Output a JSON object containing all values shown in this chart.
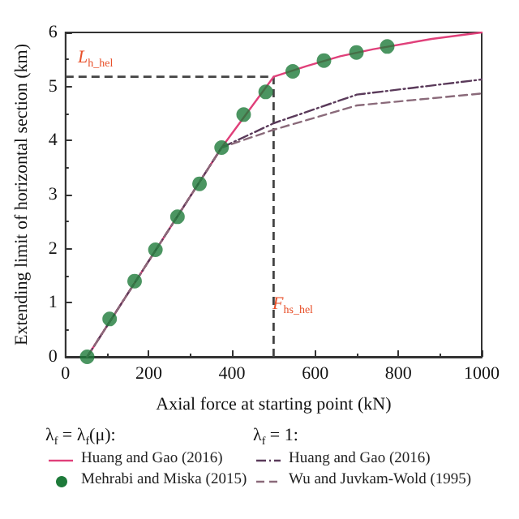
{
  "chart_data": {
    "type": "line",
    "xlabel": "Axial force at starting point (kN)",
    "ylabel": "Extending limit of horizontal section (km)",
    "xlim": [
      0,
      1000
    ],
    "xticks": [
      0,
      200,
      400,
      600,
      800,
      1000
    ],
    "ylim": [
      0,
      6
    ],
    "yticks": [
      0,
      1,
      2,
      3,
      4,
      5,
      6
    ],
    "grid": false,
    "legend": "bottom",
    "annotations": [
      "λ$_{f}$ = λ$_{f}$(μ):",
      "λ$_{f}$ = 1:"
    ],
    "ref_lines": [
      {
        "axis": "y",
        "value": 5.18,
        "label": "L$_{h_hel}$",
        "color": "#444444",
        "line_style": "dashed"
      },
      {
        "axis": "x",
        "value": 500,
        "label": "F$_{hs_hel}$",
        "color": "#444444",
        "line_style": "dashed"
      }
    ],
    "series": [
      {
        "name": "Huang and Gao (2016)",
        "color": "#e0407a",
        "line_style": "solid",
        "marker": "none",
        "x": [
          52,
          375,
          500,
          580,
          660,
          740,
          880,
          1000
        ],
        "values": [
          0,
          3.87,
          5.18,
          5.38,
          5.56,
          5.69,
          5.88,
          6.0
        ]
      },
      {
        "name": "Mehrabi and Miska (2015)",
        "type": "scatter",
        "color": "#1e7a3a",
        "marker": "circle",
        "x": [
          52,
          106,
          166,
          216,
          269,
          322,
          375,
          428,
          481,
          546,
          621,
          699,
          773
        ],
        "values": [
          0,
          0.7,
          1.4,
          1.98,
          2.59,
          3.2,
          3.87,
          4.48,
          4.9,
          5.28,
          5.48,
          5.63,
          5.74
        ]
      },
      {
        "name": "Huang and Gao (2016)",
        "color": "#5a3a5a",
        "line_style": "dashdot",
        "marker": "none",
        "x": [
          52,
          375,
          500,
          700,
          1000
        ],
        "values": [
          0,
          3.87,
          4.32,
          4.85,
          5.13
        ]
      },
      {
        "name": "Wu and Juvkam-Wold (1995)",
        "color": "#8a6a7a",
        "line_style": "dashed",
        "marker": "none",
        "x": [
          52,
          375,
          500,
          700,
          1000
        ],
        "values": [
          0,
          3.87,
          4.2,
          4.65,
          4.87
        ]
      }
    ]
  }
}
